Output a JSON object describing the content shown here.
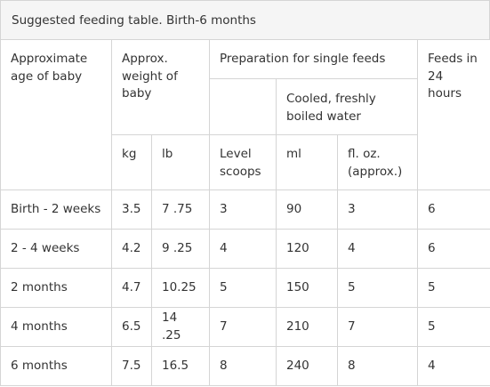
{
  "caption": "Suggested feeding table. Birth-6 months",
  "headers": {
    "age": "Approximate age of baby",
    "weight": "Approx. weight of baby",
    "preparation": "Preparation for single feeds",
    "feeds": "Feeds in 24 hours",
    "water": "Cooled, freshly boiled water",
    "kg": "kg",
    "lb": "lb",
    "scoops": "Level scoops",
    "ml": "ml",
    "floz": "fl. oz. (approx.)"
  },
  "rows": [
    {
      "age": "Birth - 2 weeks",
      "kg": "3.5",
      "lb": "7 .75",
      "scoops": "3",
      "ml": "90",
      "floz": "3",
      "feeds": "6"
    },
    {
      "age": "2 - 4 weeks",
      "kg": "4.2",
      "lb": "9 .25",
      "scoops": "4",
      "ml": "120",
      "floz": "4",
      "feeds": "6"
    },
    {
      "age": "2 months",
      "kg": "4.7",
      "lb": "10.25",
      "scoops": "5",
      "ml": "150",
      "floz": "5",
      "feeds": "5"
    },
    {
      "age": "4 months",
      "kg": "6.5",
      "lb": "14 .25",
      "scoops": "7",
      "ml": "210",
      "floz": "7",
      "feeds": "5"
    },
    {
      "age": "6 months",
      "kg": "7.5",
      "lb": "16.5",
      "scoops": "8",
      "ml": "240",
      "floz": "8",
      "feeds": "4"
    }
  ]
}
